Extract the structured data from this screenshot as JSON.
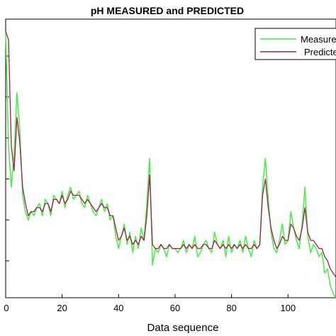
{
  "chart_data": {
    "type": "line",
    "title": "pH MEASURED and  PREDICTED",
    "xlabel": "Data sequence",
    "ylabel": "",
    "xlim": [
      0,
      117
    ],
    "xticks": [
      0,
      20,
      40,
      60,
      80,
      100
    ],
    "tick_labels": [
      "0",
      "20",
      "40",
      "60",
      "80",
      "100"
    ],
    "legend": {
      "placement": "top-right",
      "entries": [
        "Measure",
        "Predicte"
      ]
    },
    "grid": false,
    "series": [
      {
        "name": "Measured",
        "color": "#44ee44",
        "x": [
          0,
          1,
          2,
          3,
          4,
          5,
          6,
          7,
          8,
          9,
          10,
          11,
          12,
          13,
          14,
          15,
          16,
          17,
          18,
          19,
          20,
          21,
          22,
          23,
          24,
          25,
          26,
          27,
          28,
          29,
          30,
          31,
          32,
          33,
          34,
          35,
          36,
          37,
          38,
          39,
          40,
          41,
          42,
          43,
          44,
          45,
          46,
          47,
          48,
          49,
          50,
          51,
          52,
          53,
          54,
          55,
          56,
          57,
          58,
          59,
          60,
          61,
          62,
          63,
          64,
          65,
          66,
          67,
          68,
          69,
          70,
          71,
          72,
          73,
          74,
          75,
          76,
          77,
          78,
          79,
          80,
          81,
          82,
          83,
          84,
          85,
          86,
          87,
          88,
          89,
          90,
          91,
          92,
          93,
          94,
          95,
          96,
          97,
          98,
          99,
          100,
          101,
          102,
          103,
          104,
          105,
          106,
          107,
          108,
          109,
          110,
          111,
          112,
          113,
          114,
          115,
          116,
          117
        ],
        "y": [
          5.6,
          2.8,
          1.8,
          2.6,
          4.1,
          3.2,
          1.6,
          1.2,
          1.0,
          1.2,
          1.1,
          1.3,
          1.4,
          1.1,
          1.5,
          1.4,
          1.1,
          1.6,
          1.5,
          1.4,
          1.7,
          1.3,
          1.6,
          1.8,
          1.5,
          1.6,
          1.7,
          1.4,
          1.3,
          1.6,
          1.4,
          1.2,
          1.1,
          1.3,
          1.5,
          1.2,
          1.4,
          1.0,
          1.1,
          0.6,
          0.3,
          0.6,
          0.9,
          0.4,
          0.7,
          0.2,
          0.6,
          0.3,
          0.8,
          0.5,
          1.4,
          2.5,
          -0.1,
          0.3,
          0.2,
          0.4,
          0.3,
          0.1,
          0.4,
          0.3,
          0.3,
          0.2,
          0.3,
          0.5,
          0.2,
          0.4,
          0.3,
          0.6,
          0.1,
          0.2,
          0.4,
          0.5,
          0.3,
          0.2,
          0.7,
          0.4,
          0.3,
          0.5,
          0.1,
          0.6,
          0.2,
          0.4,
          0.3,
          0.5,
          0.2,
          0.6,
          0.3,
          0.1,
          0.5,
          0.3,
          0.4,
          1.8,
          2.5,
          1.5,
          0.7,
          0.3,
          0.2,
          0.5,
          0.9,
          0.4,
          0.5,
          1.2,
          0.8,
          0.5,
          0.3,
          0.9,
          1.8,
          0.6,
          0.2,
          0.4,
          0.3,
          0.1,
          0.2,
          -0.3,
          -0.2,
          -0.6,
          -0.8,
          -0.9
        ]
      },
      {
        "name": "Predicted",
        "color": "#a0204a",
        "x": [
          0,
          1,
          2,
          3,
          4,
          5,
          6,
          7,
          8,
          9,
          10,
          11,
          12,
          13,
          14,
          15,
          16,
          17,
          18,
          19,
          20,
          21,
          22,
          23,
          24,
          25,
          26,
          27,
          28,
          29,
          30,
          31,
          32,
          33,
          34,
          35,
          36,
          37,
          38,
          39,
          40,
          41,
          42,
          43,
          44,
          45,
          46,
          47,
          48,
          49,
          50,
          51,
          52,
          53,
          54,
          55,
          56,
          57,
          58,
          59,
          60,
          61,
          62,
          63,
          64,
          65,
          66,
          67,
          68,
          69,
          70,
          71,
          72,
          73,
          74,
          75,
          76,
          77,
          78,
          79,
          80,
          81,
          82,
          83,
          84,
          85,
          86,
          87,
          88,
          89,
          90,
          91,
          92,
          93,
          94,
          95,
          96,
          97,
          98,
          99,
          100,
          101,
          102,
          103,
          104,
          105,
          106,
          107,
          108,
          109,
          110,
          111,
          112,
          113,
          114,
          115,
          116,
          117
        ],
        "y": [
          5.6,
          5.4,
          2.8,
          2.2,
          3.5,
          2.9,
          1.8,
          1.4,
          1.1,
          1.2,
          1.2,
          1.3,
          1.3,
          1.2,
          1.4,
          1.4,
          1.2,
          1.5,
          1.5,
          1.4,
          1.6,
          1.4,
          1.5,
          1.7,
          1.6,
          1.6,
          1.6,
          1.5,
          1.4,
          1.5,
          1.4,
          1.3,
          1.2,
          1.3,
          1.4,
          1.3,
          1.3,
          1.1,
          1.1,
          0.8,
          0.5,
          0.6,
          0.8,
          0.5,
          0.6,
          0.4,
          0.5,
          0.4,
          0.6,
          0.5,
          1.1,
          2.1,
          0.4,
          0.3,
          0.3,
          0.4,
          0.3,
          0.3,
          0.4,
          0.3,
          0.3,
          0.3,
          0.3,
          0.4,
          0.3,
          0.4,
          0.3,
          0.4,
          0.3,
          0.3,
          0.4,
          0.4,
          0.3,
          0.3,
          0.5,
          0.4,
          0.3,
          0.4,
          0.3,
          0.4,
          0.3,
          0.4,
          0.3,
          0.4,
          0.3,
          0.4,
          0.3,
          0.3,
          0.4,
          0.3,
          0.4,
          1.6,
          2.0,
          1.3,
          0.8,
          0.5,
          0.3,
          0.4,
          0.6,
          0.5,
          0.5,
          0.9,
          0.8,
          0.6,
          0.5,
          0.8,
          1.3,
          0.7,
          0.5,
          0.5,
          0.4,
          0.3,
          0.3,
          0.1,
          0.0,
          -0.2,
          -0.3,
          -0.4
        ]
      }
    ],
    "ylim": [
      -0.9,
      5.9
    ]
  }
}
